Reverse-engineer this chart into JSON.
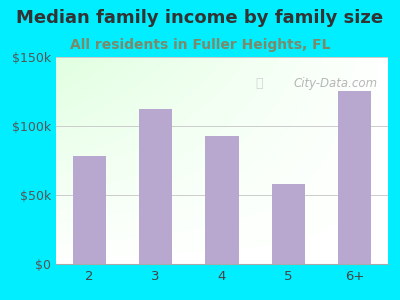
{
  "title": "Median family income by family size",
  "subtitle": "All residents in Fuller Heights, FL",
  "categories": [
    "2",
    "3",
    "4",
    "5",
    "6+"
  ],
  "values": [
    78000,
    112000,
    93000,
    58000,
    125000
  ],
  "bar_color": "#b8a8d0",
  "title_fontsize": 13,
  "subtitle_fontsize": 10,
  "subtitle_color": "#7a8a6a",
  "title_color": "#333333",
  "bg_outer": "#00eeff",
  "ylim": [
    0,
    150000
  ],
  "yticks": [
    0,
    50000,
    100000,
    150000
  ],
  "ytick_labels": [
    "$0",
    "$50k",
    "$100k",
    "$150k"
  ],
  "watermark": "City-Data.com",
  "grid_color": "#cccccc"
}
